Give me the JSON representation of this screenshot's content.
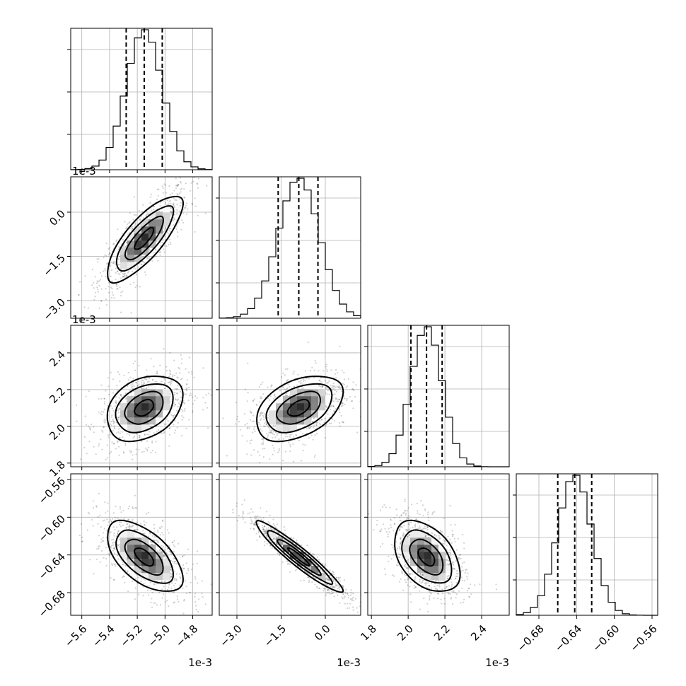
{
  "chart_data": {
    "type": "corner",
    "dimensions": [
      {
        "offset_label": "1e-3",
        "ticks": [
          -5.6,
          -5.4,
          -5.2,
          -5.0,
          -4.8
        ],
        "tick_labels": [
          "−5.6",
          "−5.4",
          "−5.2",
          "−5.0",
          "−4.8"
        ],
        "range": [
          -5.68,
          -4.66
        ],
        "mean": -5.15,
        "sigma": 0.13,
        "quantiles": [
          -5.28,
          -5.15,
          -5.02
        ]
      },
      {
        "offset_label": "1e-3",
        "ticks": [
          -3.0,
          -1.5,
          0.0
        ],
        "tick_labels": [
          "−3.0",
          "−1.5",
          "0.0"
        ],
        "range": [
          -3.6,
          1.2
        ],
        "mean": -0.9,
        "sigma": 0.7,
        "quantiles": [
          -1.6,
          -0.9,
          -0.25
        ]
      },
      {
        "offset_label": "1e-3",
        "ticks": [
          1.8,
          2.0,
          2.2,
          2.4
        ],
        "tick_labels": [
          "1.8",
          "2.0",
          "2.2",
          "2.4"
        ],
        "range": [
          1.78,
          2.55
        ],
        "mean": 2.1,
        "sigma": 0.085,
        "quantiles": [
          2.015,
          2.1,
          2.185
        ]
      },
      {
        "offset_label": "",
        "ticks": [
          -0.68,
          -0.64,
          -0.6,
          -0.56
        ],
        "tick_labels": [
          "−0.68",
          "−0.64",
          "−0.60",
          "−0.56"
        ],
        "range": [
          -0.704,
          -0.554
        ],
        "mean": -0.642,
        "sigma": 0.018,
        "quantiles": [
          -0.66,
          -0.642,
          -0.624
        ]
      }
    ],
    "correlations": [
      {
        "row": 1,
        "col": 0,
        "rho": 0.8
      },
      {
        "row": 2,
        "col": 0,
        "rho": 0.35
      },
      {
        "row": 2,
        "col": 1,
        "rho": 0.45
      },
      {
        "row": 3,
        "col": 0,
        "rho": -0.6
      },
      {
        "row": 3,
        "col": 1,
        "rho": -0.95
      },
      {
        "row": 3,
        "col": 2,
        "rho": -0.45
      }
    ],
    "histogram_bins": 20,
    "contour_levels": [
      0.5,
      1.0,
      1.5,
      2.0
    ],
    "grid": true
  }
}
